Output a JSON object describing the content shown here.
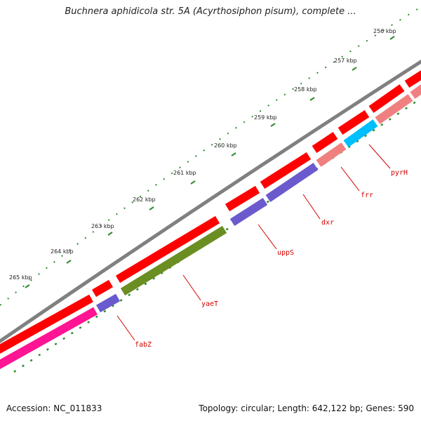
{
  "title": "Buchnera aphidicola str. 5A (Acyrthosiphon pisum), complete ...",
  "accession": "Accession: NC_011833",
  "summary": "Topology: circular; Length: 642,122 bp; Genes: 590",
  "kbp_labels": [
    "256 kbp",
    "257 kbp",
    "258 kbp",
    "259 kbp",
    "260 kbp",
    "261 kbp",
    "262 kbp",
    "263 kbp",
    "264 kbp",
    "265 kbp"
  ],
  "gene_labels": [
    "fabZ",
    "yaeT",
    "uppS",
    "dxr",
    "frr",
    "pyrH"
  ],
  "colors": {
    "backbone": "#808080",
    "cds_forward": "#ff0000",
    "cds_reverse": "#ff1493",
    "gene_purple": "#6a5acd",
    "gene_olive": "#6b8e23",
    "gene_salmon": "#f08080",
    "gene_cyan": "#00bfff",
    "ticks": "#2e8b2e",
    "label": "#d40000"
  }
}
